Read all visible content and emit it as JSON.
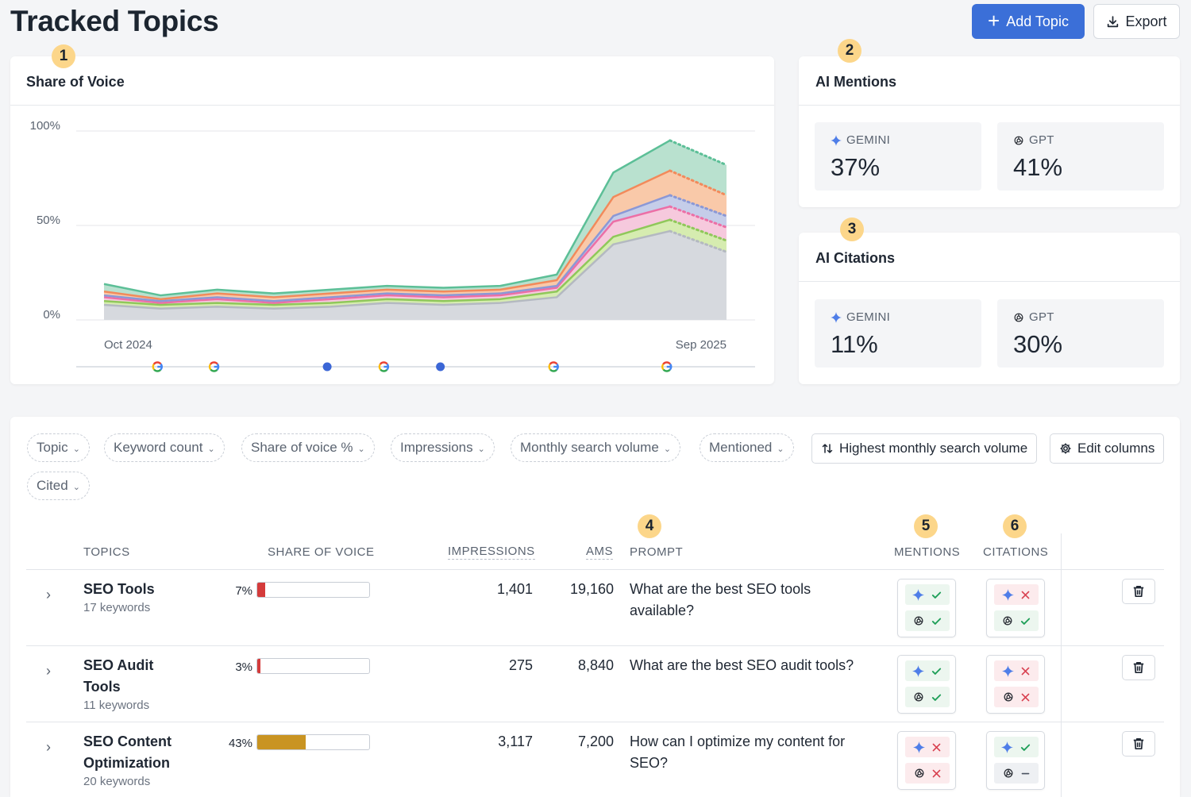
{
  "header": {
    "title": "Tracked Topics",
    "add_label": "Add Topic",
    "export_label": "Export"
  },
  "markers": [
    "1",
    "2",
    "3",
    "4",
    "5",
    "6"
  ],
  "share_of_voice": {
    "title": "Share of Voice",
    "chart_data": {
      "type": "area",
      "title": "Share of Voice",
      "x_start_label": "Oct 2024",
      "x_end_label": "Sep 2025",
      "ylabel": "",
      "ylim": [
        0,
        100
      ],
      "y_ticks": [
        "100%",
        "50%",
        "0%"
      ],
      "stacked": true,
      "points": 12,
      "projected_from_index": 10,
      "series": [
        {
          "name": "gray",
          "color": "#d6d9de",
          "line": "#b4b9c1",
          "values": [
            8,
            6,
            7,
            6,
            7,
            9,
            8,
            9,
            12,
            40,
            47,
            36
          ]
        },
        {
          "name": "green",
          "color": "#d6ecb0",
          "line": "#8fc85a",
          "values": [
            2,
            2,
            2,
            2,
            2,
            2,
            2,
            2,
            3,
            4,
            6,
            6
          ]
        },
        {
          "name": "pink",
          "color": "#f6c9dd",
          "line": "#ec6fa6",
          "values": [
            2,
            1,
            2,
            1,
            2,
            2,
            2,
            2,
            2,
            8,
            7,
            7
          ]
        },
        {
          "name": "blue",
          "color": "#c5cde9",
          "line": "#8b98d6",
          "values": [
            1,
            1,
            1,
            1,
            1,
            1,
            1,
            1,
            1,
            3,
            6,
            6
          ]
        },
        {
          "name": "orange",
          "color": "#f9c9a9",
          "line": "#f28a5b",
          "values": [
            2,
            1,
            2,
            2,
            2,
            2,
            2,
            2,
            3,
            10,
            13,
            11
          ]
        },
        {
          "name": "teal",
          "color": "#b9e1cf",
          "line": "#5cbf97",
          "values": [
            4,
            2,
            2,
            2,
            2,
            2,
            2,
            2,
            3,
            13,
            16,
            16
          ]
        }
      ],
      "events": [
        {
          "x": 1,
          "kind": "google"
        },
        {
          "x": 2,
          "kind": "google"
        },
        {
          "x": 4,
          "kind": "dot"
        },
        {
          "x": 5,
          "kind": "google"
        },
        {
          "x": 6,
          "kind": "dot"
        },
        {
          "x": 8,
          "kind": "google"
        },
        {
          "x": 10,
          "kind": "google"
        }
      ]
    }
  },
  "ai_mentions": {
    "title": "AI Mentions",
    "gemini_label": "GEMINI",
    "gemini_value": "37%",
    "gpt_label": "GPT",
    "gpt_value": "41%"
  },
  "ai_citations": {
    "title": "AI Citations",
    "gemini_label": "GEMINI",
    "gemini_value": "11%",
    "gpt_label": "GPT",
    "gpt_value": "30%"
  },
  "filters": {
    "topic": "Topic",
    "keyword_count": "Keyword count",
    "share_of_voice": "Share of voice %",
    "impressions": "Impressions",
    "msv": "Monthly search volume",
    "mentioned": "Mentioned",
    "cited": "Cited",
    "sort": "Highest monthly search volume",
    "edit_columns": "Edit columns"
  },
  "table": {
    "headers": {
      "topics": "TOPICS",
      "sov": "SHARE OF VOICE",
      "impressions": "IMPRESSIONS",
      "ams": "AMS",
      "prompt": "PROMPT",
      "mentions": "MENTIONS",
      "citations": "CITATIONS"
    },
    "rows": [
      {
        "name": "SEO Tools",
        "keywords": "17 keywords",
        "sov": "7%",
        "sov_value": 7,
        "bar_color": "#d43b3b",
        "impressions": "1,401",
        "ams": "19,160",
        "prompt": "What are the best SEO tools available?",
        "mentions": [
          "ok",
          "ok"
        ],
        "citations": [
          "no",
          "ok"
        ]
      },
      {
        "name": "SEO Audit Tools",
        "keywords": "11 keywords",
        "sov": "3%",
        "sov_value": 3,
        "bar_color": "#d43b3b",
        "impressions": "275",
        "ams": "8,840",
        "prompt": "What are the best SEO audit tools?",
        "mentions": [
          "ok",
          "ok"
        ],
        "citations": [
          "no",
          "no"
        ]
      },
      {
        "name": "SEO Content Optimization",
        "keywords": "20 keywords",
        "sov": "43%",
        "sov_value": 43,
        "bar_color": "#c99422",
        "impressions": "3,117",
        "ams": "7,200",
        "prompt": "How can I optimize my content for SEO?",
        "mentions": [
          "no",
          "no"
        ],
        "citations": [
          "ok",
          "na"
        ]
      }
    ]
  }
}
